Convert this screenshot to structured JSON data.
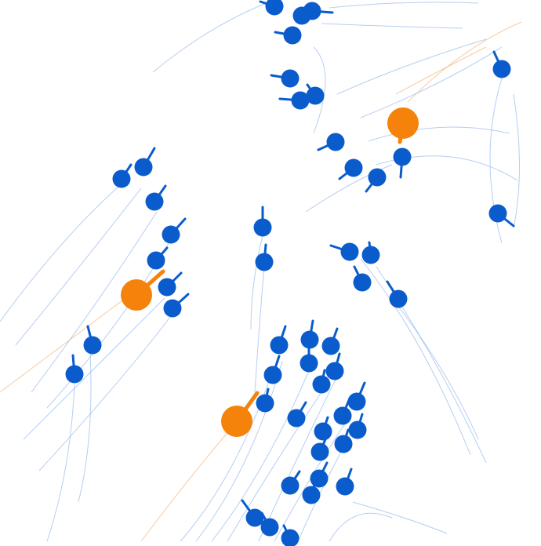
{
  "colors": {
    "background": "#ffffff",
    "agent": "#0a5ccc",
    "agent_trail": "#7aa6e8",
    "leader": "#f5820a",
    "leader_trail": "#f5b37a"
  },
  "legend": {
    "agent_count": 62,
    "leader_count": 3
  }
}
